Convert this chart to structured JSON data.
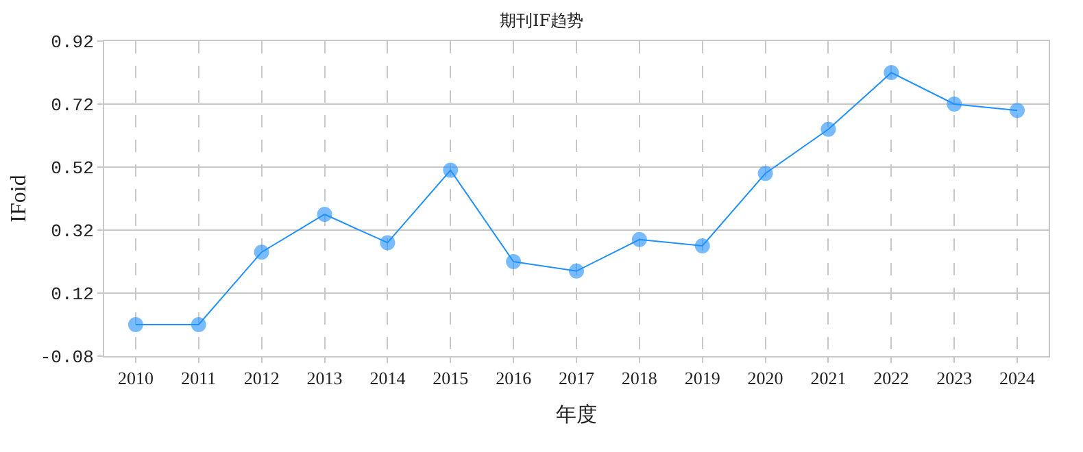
{
  "chart_data": {
    "type": "line",
    "title": "期刊IF趋势",
    "xlabel": "年度",
    "ylabel": "IFoid",
    "categories": [
      "2010",
      "2011",
      "2012",
      "2013",
      "2014",
      "2015",
      "2016",
      "2017",
      "2018",
      "2019",
      "2020",
      "2021",
      "2022",
      "2023",
      "2024"
    ],
    "series": [
      {
        "color": "#1e90ff",
        "values": [
          0.02,
          0.02,
          0.25,
          0.37,
          0.28,
          0.51,
          0.22,
          0.19,
          0.29,
          0.27,
          0.5,
          0.64,
          0.82,
          0.72,
          0.7
        ]
      }
    ],
    "ylim": [
      -0.08,
      0.92
    ],
    "yticks": [
      -0.08,
      0.12,
      0.32,
      0.52,
      0.72,
      0.92
    ],
    "grid": true,
    "marker": "circle",
    "line_style": "solid"
  }
}
